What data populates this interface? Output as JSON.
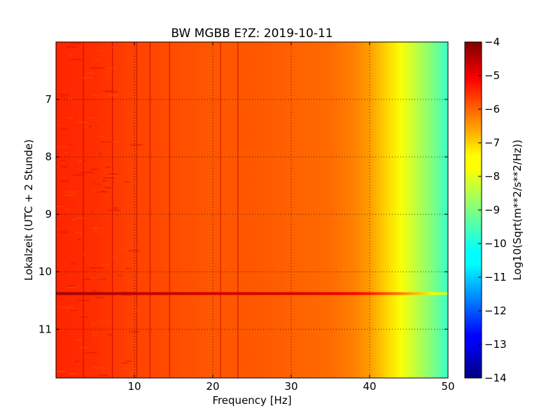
{
  "chart_data": {
    "type": "heatmap",
    "title": "BW MGBB E?Z: 2019-10-11",
    "xlabel": "Frequency [Hz]",
    "ylabel": "Lokalzeit (UTC + 2 Stunde)",
    "xlim": [
      0,
      50
    ],
    "ylim": [
      11.85,
      6.0
    ],
    "y_inverted": true,
    "x_ticks": [
      10,
      20,
      30,
      40,
      50
    ],
    "y_ticks": [
      7,
      8,
      9,
      10,
      11
    ],
    "grid": true,
    "grid_style": "dotted",
    "colorbar": {
      "label": "Log10(Sqrt(m**2/s**2/Hz))",
      "range": [
        -14,
        -4
      ],
      "ticks": [
        -4,
        -5,
        -6,
        -7,
        -8,
        -9,
        -10,
        -11,
        -12,
        -13,
        -14
      ],
      "colormap": "jet"
    },
    "spectral_profile": {
      "frequency_hz": [
        0,
        5,
        10,
        15,
        20,
        25,
        30,
        35,
        38,
        40,
        42,
        44,
        46,
        48,
        50
      ],
      "level": [
        -5.6,
        -5.7,
        -5.9,
        -6.0,
        -6.1,
        -6.1,
        -6.2,
        -6.3,
        -6.5,
        -6.8,
        -7.3,
        -7.8,
        -8.4,
        -9.0,
        -9.7
      ]
    },
    "event_band": {
      "time_hours": 10.38,
      "level": -4.6
    },
    "vertical_lines_hz": [
      3.5,
      7.2,
      10.3,
      12.0,
      14.5,
      21.0,
      23.2
    ]
  }
}
